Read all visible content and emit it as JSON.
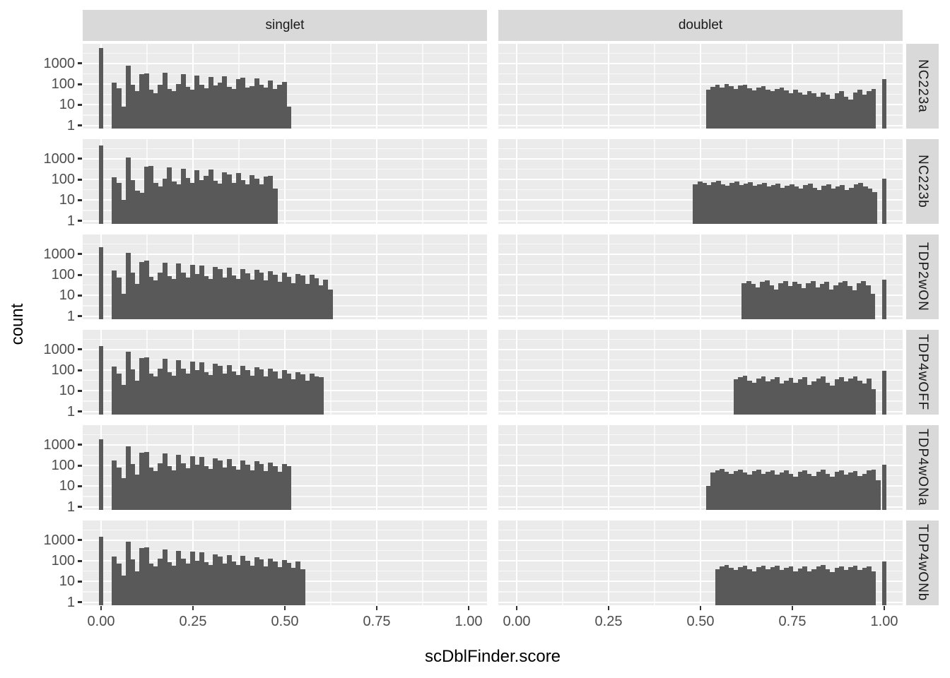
{
  "chart_data": {
    "type": "bar",
    "subtype": "faceted-histogram",
    "title": "",
    "xlabel": "scDblFinder.score",
    "ylabel": "count",
    "y_scale": "log10",
    "x_ticks": [
      0,
      0.25,
      0.5,
      0.75,
      1
    ],
    "x_tick_labels": [
      "0.00",
      "0.25",
      "0.50",
      "0.75",
      "1.00"
    ],
    "y_ticks": [
      1000,
      100,
      10,
      1
    ],
    "y_tick_labels": [
      "1000",
      "100",
      "10",
      "1"
    ],
    "xlim_expanded": [
      -0.05,
      1.05
    ],
    "ylim_log_expanded": [
      -0.15,
      3.95
    ],
    "grid": true,
    "facet_cols": [
      "singlet",
      "doublet"
    ],
    "facet_rows": [
      "NC223a",
      "NC223b",
      "TDP2wON",
      "TDP4wOFF",
      "TDP4wONa",
      "TDP4wONb"
    ],
    "binwidth": 0.0125,
    "colors": {
      "bar": "#595959",
      "panel_bg": "#EBEBEB",
      "strip_bg": "#D9D9D9",
      "grid_major": "#FFFFFF",
      "grid_minor": "#F5F5F5",
      "tick_mark": "#333333",
      "axis_text": "#4D4D4D",
      "strip_text": "#1A1A1A",
      "title_text": "#000000"
    },
    "panels": [
      {
        "row": "NC223a",
        "col": "singlet",
        "spike_x": 0,
        "spike_count": 5500,
        "x_start": 0.03,
        "counts": [
          120,
          65,
          8,
          780,
          90,
          45,
          310,
          330,
          55,
          35,
          95,
          350,
          60,
          45,
          105,
          310,
          75,
          55,
          250,
          95,
          65,
          230,
          85,
          115,
          240,
          75,
          60,
          170,
          210,
          70,
          80,
          190,
          95,
          70,
          150,
          60,
          95,
          130,
          8
        ]
      },
      {
        "row": "NC223a",
        "col": "doublet",
        "spike_x": 1,
        "spike_count": 170,
        "x_start": 0.515,
        "counts": [
          55,
          75,
          90,
          70,
          100,
          80,
          60,
          85,
          95,
          65,
          50,
          70,
          80,
          55,
          45,
          60,
          70,
          50,
          35,
          55,
          40,
          30,
          45,
          35,
          25,
          40,
          30,
          20,
          35,
          45,
          25,
          18,
          40,
          55,
          30,
          45,
          60
        ]
      },
      {
        "row": "NC223b",
        "col": "singlet",
        "spike_x": 0,
        "spike_count": 4500,
        "x_start": 0.03,
        "counts": [
          130,
          70,
          10,
          1150,
          95,
          28,
          22,
          420,
          460,
          70,
          45,
          110,
          380,
          80,
          60,
          330,
          120,
          70,
          290,
          90,
          150,
          310,
          85,
          65,
          230,
          180,
          70,
          210,
          90,
          60,
          160,
          110,
          60,
          140,
          150,
          35
        ]
      },
      {
        "row": "NC223b",
        "col": "doublet",
        "spike_x": 1,
        "spike_count": 110,
        "x_start": 0.48,
        "counts": [
          60,
          80,
          70,
          55,
          75,
          85,
          60,
          50,
          70,
          80,
          55,
          65,
          75,
          50,
          60,
          70,
          45,
          55,
          65,
          40,
          50,
          60,
          45,
          35,
          55,
          65,
          40,
          30,
          50,
          60,
          35,
          45,
          55,
          30,
          40,
          60,
          70,
          45,
          35,
          25
        ]
      },
      {
        "row": "TDP2wON",
        "col": "singlet",
        "spike_x": 0,
        "spike_count": 2200,
        "x_start": 0.03,
        "counts": [
          160,
          75,
          12,
          1150,
          130,
          35,
          420,
          470,
          80,
          55,
          130,
          390,
          85,
          65,
          350,
          130,
          75,
          300,
          110,
          290,
          85,
          65,
          240,
          190,
          75,
          220,
          95,
          65,
          190,
          120,
          60,
          170,
          130,
          55,
          150,
          100,
          45,
          130,
          80,
          40,
          110,
          90,
          35,
          100,
          70,
          30,
          60,
          20
        ]
      },
      {
        "row": "TDP2wON",
        "col": "doublet",
        "spike_x": 1,
        "spike_count": 60,
        "x_start": 0.6125,
        "counts": [
          40,
          50,
          35,
          25,
          45,
          55,
          30,
          20,
          40,
          50,
          28,
          45,
          35,
          22,
          40,
          48,
          25,
          35,
          45,
          20,
          30,
          42,
          50,
          28,
          18,
          38,
          48,
          30,
          12
        ]
      },
      {
        "row": "TDP4wOFF",
        "col": "singlet",
        "spike_x": 0,
        "spike_count": 1500,
        "x_start": 0.03,
        "counts": [
          150,
          70,
          20,
          800,
          110,
          30,
          380,
          430,
          70,
          50,
          120,
          350,
          80,
          55,
          300,
          120,
          70,
          260,
          100,
          240,
          80,
          60,
          200,
          160,
          70,
          180,
          85,
          60,
          160,
          100,
          55,
          140,
          110,
          50,
          120,
          85,
          40,
          100,
          70,
          35,
          80,
          65,
          30,
          70,
          50,
          45
        ]
      },
      {
        "row": "TDP4wOFF",
        "col": "doublet",
        "spike_x": 1,
        "spike_count": 90,
        "x_start": 0.59,
        "counts": [
          35,
          45,
          55,
          30,
          25,
          40,
          50,
          28,
          35,
          45,
          22,
          30,
          42,
          25,
          35,
          45,
          20,
          28,
          38,
          48,
          25,
          18,
          35,
          45,
          28,
          38,
          50,
          30,
          22,
          40,
          12
        ]
      },
      {
        "row": "TDP4wONa",
        "col": "singlet",
        "spike_x": 0,
        "spike_count": 1800,
        "x_start": 0.03,
        "counts": [
          170,
          80,
          25,
          850,
          120,
          35,
          420,
          460,
          80,
          55,
          130,
          380,
          90,
          60,
          320,
          130,
          75,
          280,
          110,
          260,
          90,
          70,
          220,
          170,
          80,
          200,
          95,
          65,
          180,
          110,
          60,
          160,
          120,
          55,
          140,
          95,
          50,
          120,
          90
        ]
      },
      {
        "row": "TDP4wONa",
        "col": "doublet",
        "spike_x": 1,
        "spike_count": 110,
        "x_start": 0.515,
        "counts": [
          10,
          45,
          60,
          70,
          50,
          40,
          55,
          65,
          45,
          35,
          55,
          65,
          40,
          50,
          60,
          35,
          45,
          58,
          38,
          28,
          48,
          60,
          40,
          30,
          50,
          62,
          38,
          28,
          48,
          58,
          35,
          45,
          55,
          30,
          40,
          58,
          65,
          20
        ]
      },
      {
        "row": "TDP4wONb",
        "col": "singlet",
        "spike_x": 0,
        "spike_count": 1500,
        "x_start": 0.03,
        "counts": [
          160,
          75,
          20,
          820,
          115,
          32,
          400,
          440,
          75,
          52,
          125,
          360,
          85,
          58,
          310,
          125,
          72,
          270,
          105,
          250,
          85,
          65,
          210,
          165,
          75,
          190,
          90,
          62,
          170,
          105,
          58,
          150,
          115,
          52,
          130,
          90,
          48,
          110,
          80,
          45,
          95,
          40
        ]
      },
      {
        "row": "TDP4wONb",
        "col": "doublet",
        "spike_x": 1,
        "spike_count": 90,
        "x_start": 0.54,
        "counts": [
          40,
          55,
          65,
          45,
          35,
          50,
          60,
          40,
          30,
          50,
          60,
          38,
          48,
          58,
          35,
          45,
          55,
          32,
          42,
          52,
          30,
          40,
          52,
          62,
          38,
          28,
          45,
          55,
          35,
          48,
          58,
          36,
          46,
          56,
          30
        ]
      }
    ]
  }
}
